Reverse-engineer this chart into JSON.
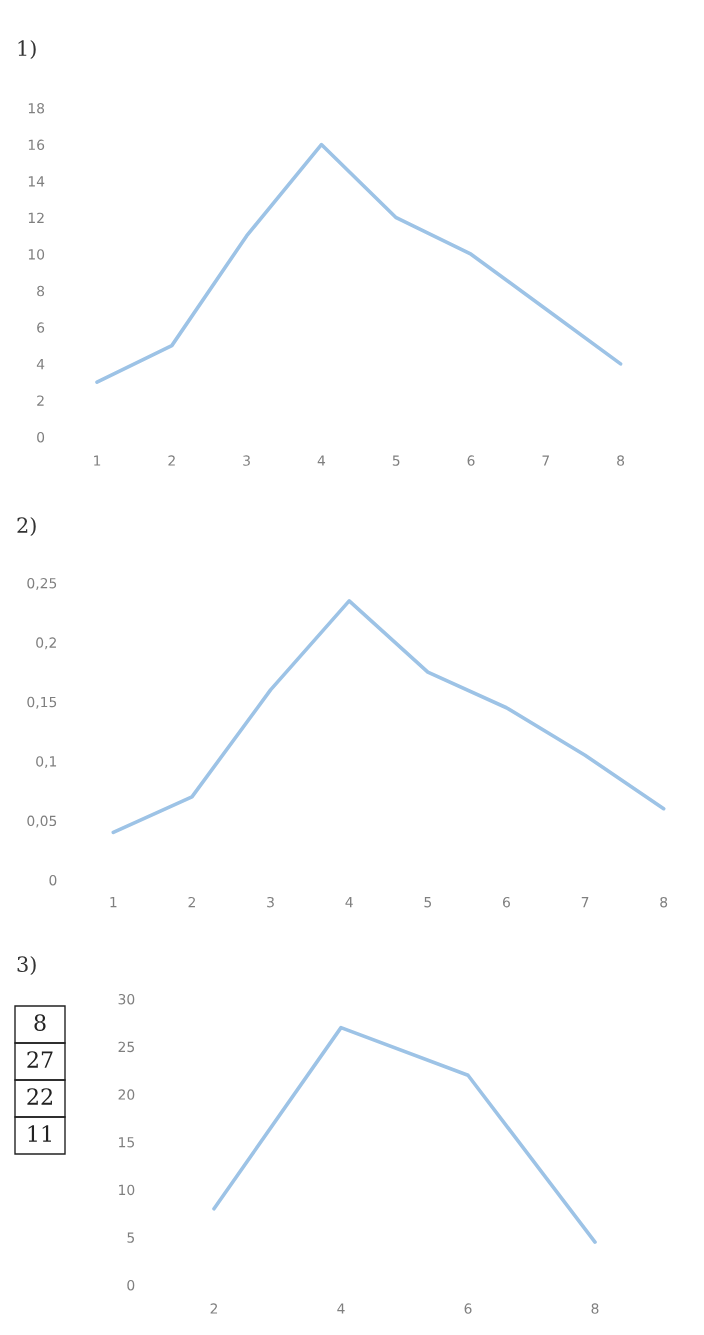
{
  "chart_data": [
    {
      "type": "line",
      "title": "1)",
      "categories": [
        "1",
        "2",
        "3",
        "4",
        "5",
        "6",
        "7",
        "8"
      ],
      "series": [
        {
          "color": "#9dc3e6",
          "values": [
            3,
            5,
            11,
            16,
            12,
            10,
            7,
            4
          ]
        }
      ],
      "ylim": [
        0,
        18
      ],
      "yticks": [
        0,
        2,
        4,
        6,
        8,
        10,
        12,
        14,
        16,
        18
      ]
    },
    {
      "type": "line",
      "title": "2)",
      "categories": [
        "1",
        "2",
        "3",
        "4",
        "5",
        "6",
        "7",
        "8"
      ],
      "series": [
        {
          "color": "#9dc3e6",
          "values": [
            0.04,
            0.07,
            0.16,
            0.235,
            0.175,
            0.145,
            0.105,
            0.06
          ]
        }
      ],
      "ylim": [
        0,
        0.25
      ],
      "yticks": [
        0,
        {
          "value": 0.05,
          "label": "0,05"
        },
        {
          "value": 0.1,
          "label": "0,1"
        },
        {
          "value": 0.15,
          "label": "0,15"
        },
        {
          "value": 0.2,
          "label": "0,2"
        },
        {
          "value": 0.25,
          "label": "0,25"
        }
      ]
    },
    {
      "type": "line",
      "title": "3)",
      "categories": [
        "2",
        "4",
        "6",
        "8"
      ],
      "series": [
        {
          "color": "#9dc3e6",
          "values": [
            8,
            27,
            22,
            4.5
          ]
        }
      ],
      "ylim": [
        0,
        30
      ],
      "yticks": [
        0,
        5,
        10,
        15,
        20,
        25,
        30
      ],
      "annotations": [
        "8",
        "27",
        "22",
        "11"
      ]
    }
  ]
}
